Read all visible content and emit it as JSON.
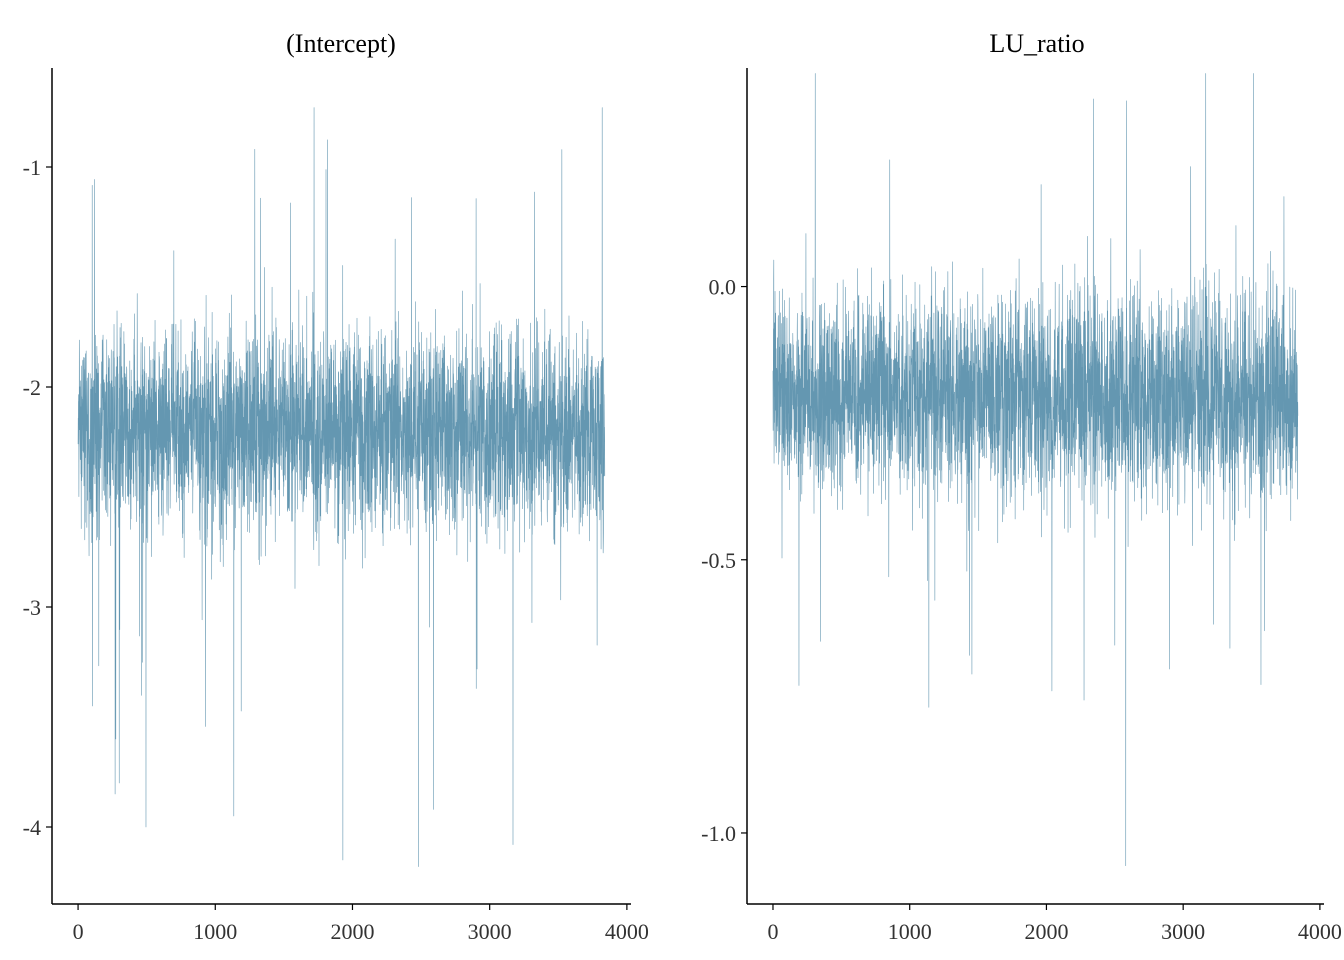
{
  "chart_data": [
    {
      "type": "line",
      "title": "(Intercept)",
      "xlabel": "",
      "ylabel": "",
      "xlim": [
        -190,
        4030
      ],
      "ylim": [
        -4.35,
        -0.55
      ],
      "xticks": [
        0,
        1000,
        2000,
        3000,
        4000
      ],
      "xtick_labels": [
        "0",
        "1000",
        "2000",
        "3000",
        "4000"
      ],
      "yticks": [
        -4,
        -3,
        -2,
        -1
      ],
      "ytick_labels": [
        "-4",
        "-3",
        "-2",
        "-1"
      ],
      "grid": false,
      "legend": "none",
      "color": "#6497b1",
      "series": [
        {
          "n_iterations": 3840,
          "center": -2.2,
          "sd": 0.22,
          "band": [
            -2.6,
            -1.85
          ],
          "range": [
            -4.18,
            -0.73
          ],
          "x": [
            105,
            270,
            275,
            300,
            495,
            1135,
            1930,
            2480,
            3170,
            1720,
            3820,
            2590
          ],
          "y": [
            -3.45,
            -3.85,
            -3.6,
            -3.8,
            -4.0,
            -3.95,
            -4.15,
            -4.18,
            -4.08,
            -0.73,
            -0.73,
            -3.92
          ]
        }
      ]
    },
    {
      "type": "line",
      "title": "LU_ratio",
      "xlabel": "",
      "ylabel": "",
      "xlim": [
        -190,
        4030
      ],
      "ylim": [
        -1.13,
        0.4
      ],
      "xticks": [
        0,
        1000,
        2000,
        3000,
        4000
      ],
      "xtick_labels": [
        "0",
        "1000",
        "2000",
        "3000",
        "4000"
      ],
      "yticks": [
        -1.0,
        -0.5,
        0.0
      ],
      "ytick_labels": [
        "-1.0",
        "-0.5",
        "0.0"
      ],
      "grid": false,
      "legend": "none",
      "color": "#6497b1",
      "series": [
        {
          "n_iterations": 3840,
          "center": -0.2,
          "sd": 0.09,
          "band": [
            -0.35,
            -0.05
          ],
          "range": [
            -1.06,
            0.39
          ],
          "x": [
            190,
            1140,
            2580,
            3165,
            2585,
            2040,
            2900,
            3870
          ],
          "y": [
            -0.73,
            -0.77,
            -1.06,
            0.39,
            0.34,
            -0.74,
            -0.7,
            -0.6
          ]
        }
      ]
    }
  ]
}
